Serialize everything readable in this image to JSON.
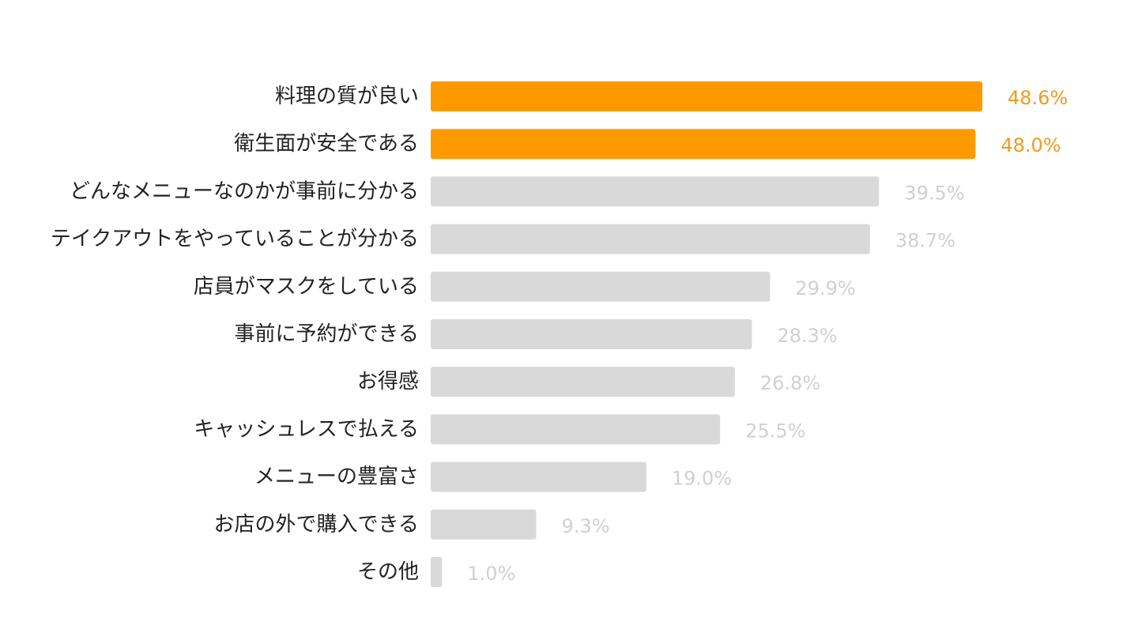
{
  "chart_data": {
    "type": "bar",
    "orientation": "horizontal",
    "title": "",
    "xlabel": "",
    "ylabel": "",
    "xlim": [
      0,
      50
    ],
    "grid": false,
    "legend": "none",
    "categories": [
      "料理の質が良い",
      "衛生面が安全である",
      "どんなメニューなのかが事前に分かる",
      "テイクアウトをやっていることが分かる",
      "店員がマスクをしている",
      "事前に予約ができる",
      "お得感",
      "キャッシュレスで払える",
      "メニューの豊富さ",
      "お店の外で購入できる",
      "その他"
    ],
    "values": [
      48.6,
      48.0,
      39.5,
      38.7,
      29.9,
      28.3,
      26.8,
      25.5,
      19.0,
      9.3,
      1.0
    ],
    "value_labels": [
      "48.6%",
      "48.0%",
      "39.5%",
      "38.7%",
      "29.9%",
      "28.3%",
      "26.8%",
      "25.5%",
      "19.0%",
      "9.3%",
      "1.0%"
    ],
    "highlighted": [
      true,
      true,
      false,
      false,
      false,
      false,
      false,
      false,
      false,
      false,
      false
    ],
    "colors": {
      "highlight_bar": "#FF9900",
      "highlight_label": "#F39A1E",
      "default_bar": "#D9D9D9",
      "default_label": "#D0D0D0",
      "category_text": "#222222"
    }
  }
}
